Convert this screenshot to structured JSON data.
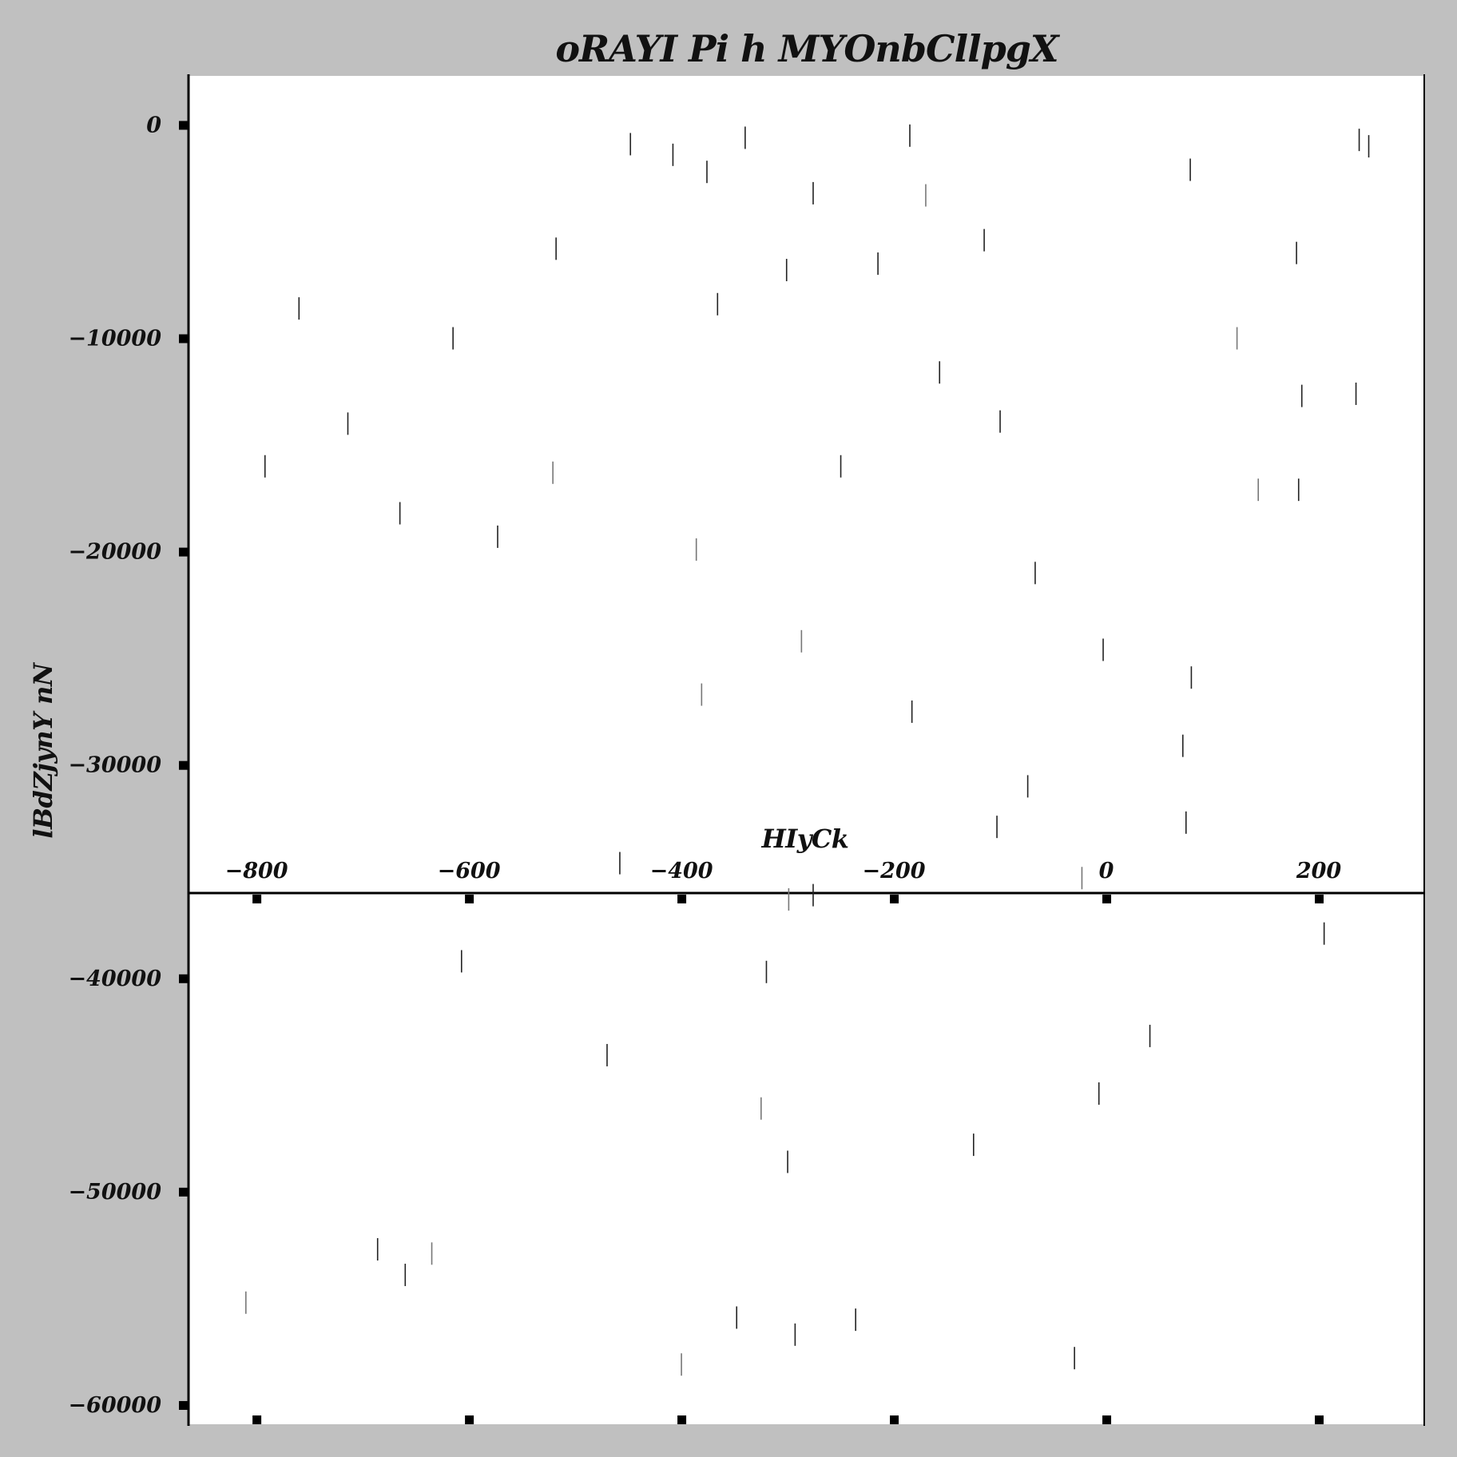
{
  "chart_data": {
    "type": "scatter",
    "marker": "vertical-line",
    "title": "oRAYI Pi h MYOnbCllpgX",
    "xlabel": "HIyCk",
    "ylabel": "lBdZjynY nN",
    "xlim": [
      -864,
      300
    ],
    "ylim": [
      -60900,
      2300
    ],
    "x_ticks": [
      -800,
      -600,
      -400,
      -200,
      0,
      200
    ],
    "x_tick_labels": [
      "−800",
      "−600",
      "−400",
      "−200",
      "0",
      "200"
    ],
    "y_ticks": [
      0,
      -10000,
      -20000,
      -30000,
      -40000,
      -50000,
      -60000
    ],
    "y_tick_labels": [
      "0",
      "−10000",
      "−20000",
      "−30000",
      "−40000",
      "−50000",
      "−60000"
    ],
    "x_axis_crossing_y": -36000,
    "grid": false,
    "legend": "none",
    "colors": {
      "background": "#c0c0c0",
      "plot_bg": "#ffffff",
      "marker_dark": "#222222",
      "marker_light": "#777777"
    },
    "points": [
      {
        "x": -448,
        "y": -900
      },
      {
        "x": -408,
        "y": -1400
      },
      {
        "x": -376,
        "y": -2200
      },
      {
        "x": -340,
        "y": -600
      },
      {
        "x": -185,
        "y": -500
      },
      {
        "x": -170,
        "y": -3300,
        "tone": "light"
      },
      {
        "x": -276,
        "y": -3200
      },
      {
        "x": 79,
        "y": -2100
      },
      {
        "x": 238,
        "y": -700
      },
      {
        "x": 247,
        "y": -1000
      },
      {
        "x": -518,
        "y": -5800
      },
      {
        "x": -301,
        "y": -6800
      },
      {
        "x": -215,
        "y": -6500
      },
      {
        "x": -115,
        "y": -5400
      },
      {
        "x": 179,
        "y": -6000
      },
      {
        "x": -760,
        "y": -8600
      },
      {
        "x": -366,
        "y": -8400
      },
      {
        "x": -615,
        "y": -10000
      },
      {
        "x": 123,
        "y": -10000,
        "tone": "light"
      },
      {
        "x": -157,
        "y": -11600
      },
      {
        "x": 184,
        "y": -12700
      },
      {
        "x": 235,
        "y": -12600
      },
      {
        "x": -714,
        "y": -14000
      },
      {
        "x": -100,
        "y": -13900
      },
      {
        "x": -792,
        "y": -16000
      },
      {
        "x": -521,
        "y": -16300,
        "tone": "light"
      },
      {
        "x": -250,
        "y": -16000
      },
      {
        "x": 143,
        "y": -17100,
        "tone": "light"
      },
      {
        "x": 181,
        "y": -17100
      },
      {
        "x": -665,
        "y": -18200
      },
      {
        "x": -573,
        "y": -19300
      },
      {
        "x": -386,
        "y": -19900,
        "tone": "light"
      },
      {
        "x": -67,
        "y": -21000
      },
      {
        "x": -287,
        "y": -24200,
        "tone": "light"
      },
      {
        "x": -3,
        "y": -24600
      },
      {
        "x": 80,
        "y": -25900
      },
      {
        "x": -381,
        "y": -26700,
        "tone": "light"
      },
      {
        "x": -183,
        "y": -27500
      },
      {
        "x": 72,
        "y": -29100
      },
      {
        "x": -74,
        "y": -31000
      },
      {
        "x": -103,
        "y": -32900
      },
      {
        "x": 75,
        "y": -32700
      },
      {
        "x": -458,
        "y": -34600
      },
      {
        "x": -23,
        "y": -35300,
        "tone": "light"
      },
      {
        "x": -299,
        "y": -36300,
        "tone": "light"
      },
      {
        "x": -276,
        "y": -36100
      },
      {
        "x": 205,
        "y": -37900
      },
      {
        "x": -607,
        "y": -39200
      },
      {
        "x": -320,
        "y": -39700
      },
      {
        "x": -470,
        "y": -43600
      },
      {
        "x": 41,
        "y": -42700
      },
      {
        "x": -7,
        "y": -45400
      },
      {
        "x": -325,
        "y": -46100,
        "tone": "light"
      },
      {
        "x": -125,
        "y": -47800
      },
      {
        "x": -300,
        "y": -48600
      },
      {
        "x": -686,
        "y": -52700
      },
      {
        "x": -635,
        "y": -52900,
        "tone": "light"
      },
      {
        "x": -660,
        "y": -53900
      },
      {
        "x": -810,
        "y": -55200,
        "tone": "light"
      },
      {
        "x": -348,
        "y": -55900
      },
      {
        "x": -293,
        "y": -56700
      },
      {
        "x": -236,
        "y": -56000
      },
      {
        "x": -400,
        "y": -58100,
        "tone": "light"
      },
      {
        "x": -30,
        "y": -57800
      }
    ]
  }
}
